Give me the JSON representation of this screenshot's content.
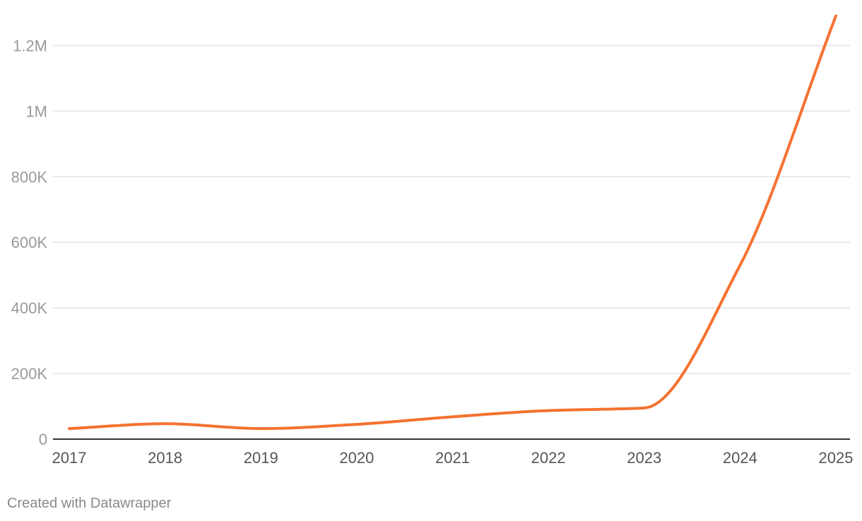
{
  "chart_data": {
    "type": "line",
    "title": "",
    "xlabel": "",
    "ylabel": "",
    "x": [
      2017,
      2018,
      2019,
      2020,
      2021,
      2022,
      2023,
      2024,
      2025
    ],
    "series": [
      {
        "values": [
          32000,
          47000,
          32000,
          45000,
          68000,
          87000,
          95000,
          530000,
          1290000
        ],
        "color": "#f57230"
      }
    ],
    "x_ticks": [
      "2017",
      "2018",
      "2019",
      "2020",
      "2021",
      "2022",
      "2023",
      "2024",
      "2025"
    ],
    "y_ticks": [
      {
        "value": 0,
        "label": "0"
      },
      {
        "value": 200000,
        "label": "200K"
      },
      {
        "value": 400000,
        "label": "400K"
      },
      {
        "value": 600000,
        "label": "600K"
      },
      {
        "value": 800000,
        "label": "800K"
      },
      {
        "value": 1000000,
        "label": "1M"
      },
      {
        "value": 1200000,
        "label": "1.2M"
      }
    ],
    "xlim": [
      2017,
      2025
    ],
    "ylim": [
      0,
      1300000
    ],
    "grid": true,
    "legend": "none",
    "gridline_color": "#e3e3e3",
    "baseline_color": "#333333"
  },
  "footer": {
    "credit": "Created with Datawrapper"
  }
}
